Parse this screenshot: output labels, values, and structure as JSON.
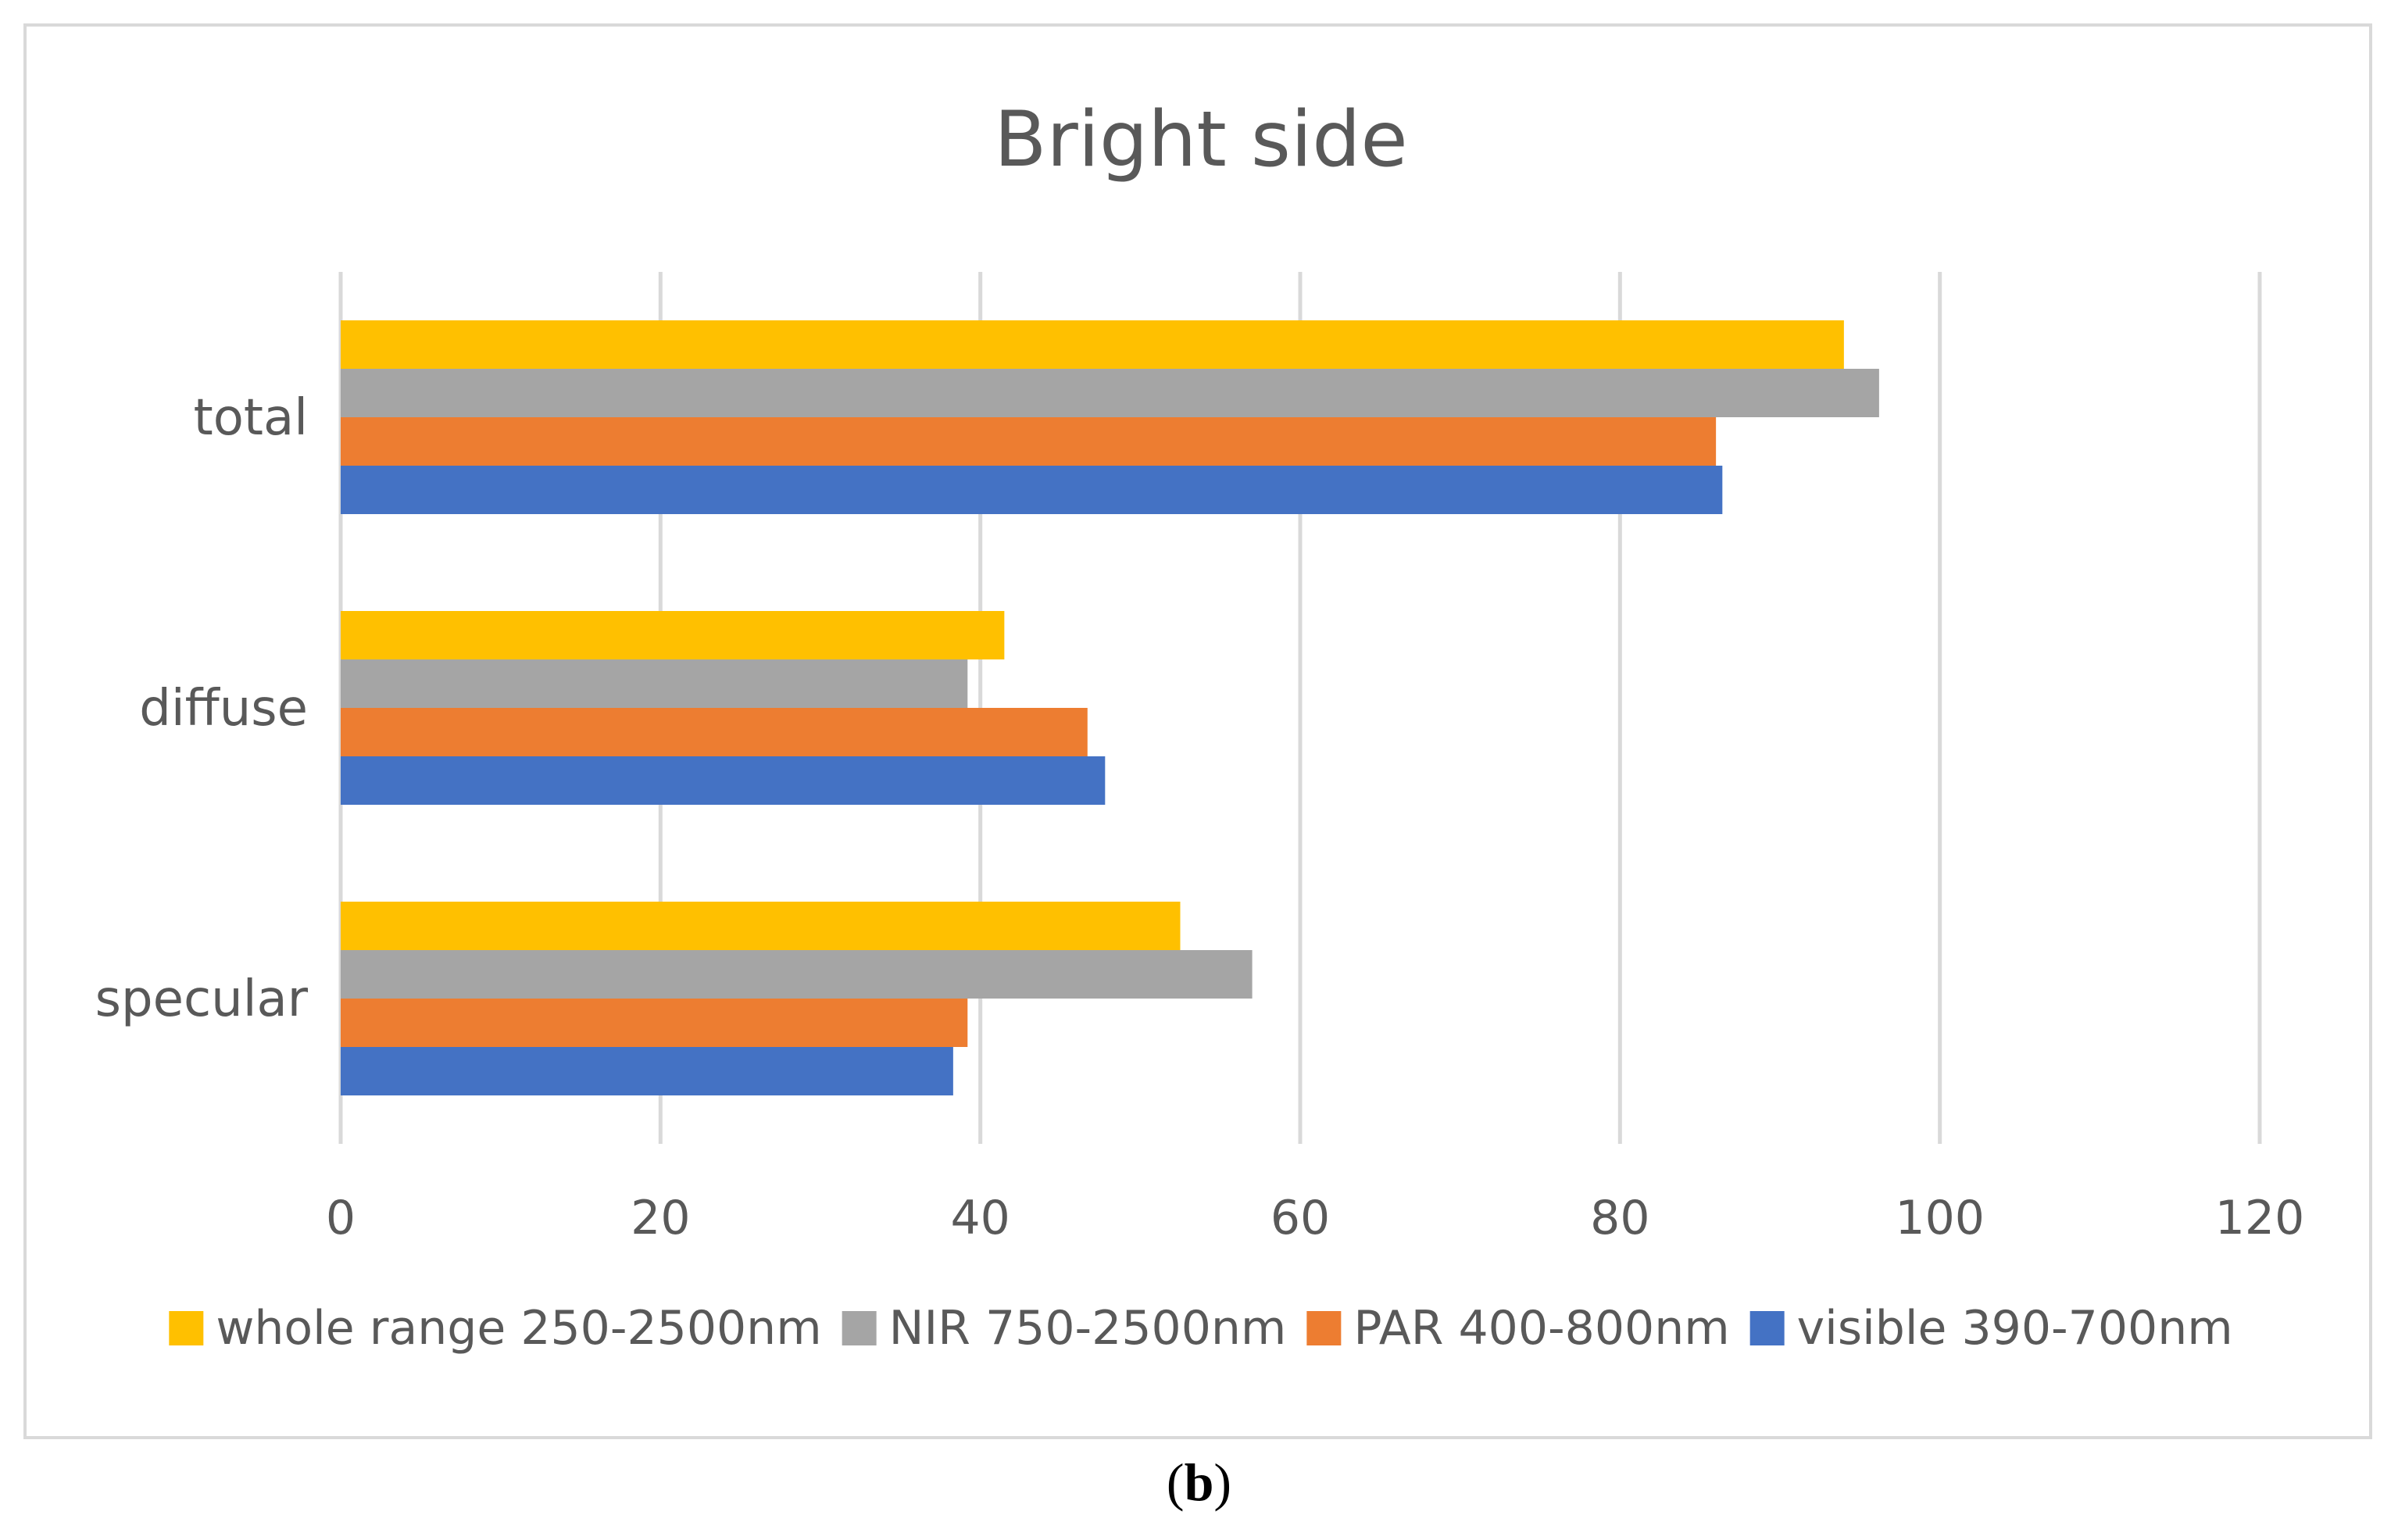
{
  "chart_data": {
    "type": "bar",
    "orientation": "horizontal",
    "title": "Bright side",
    "categories": [
      "total",
      "diffuse",
      "specular"
    ],
    "series": [
      {
        "name": "whole range 250-2500nm",
        "color": "#ffc000",
        "values": [
          94,
          41.5,
          52.5
        ]
      },
      {
        "name": "NIR 750-2500nm",
        "color": "#a5a5a5",
        "values": [
          96.2,
          39.2,
          57
        ]
      },
      {
        "name": "PAR 400-800nm",
        "color": "#ed7d31",
        "values": [
          86,
          46.7,
          39.2
        ]
      },
      {
        "name": "visible 390-700nm",
        "color": "#4472c4",
        "values": [
          86.4,
          47.8,
          38.3
        ]
      }
    ],
    "xlim": [
      0,
      120
    ],
    "xticks": [
      "0",
      "20",
      "40",
      "60",
      "80",
      "100",
      "120"
    ],
    "grid": true,
    "legend": "bottom"
  },
  "caption": {
    "open": "(",
    "label": "b",
    "close": ")"
  }
}
